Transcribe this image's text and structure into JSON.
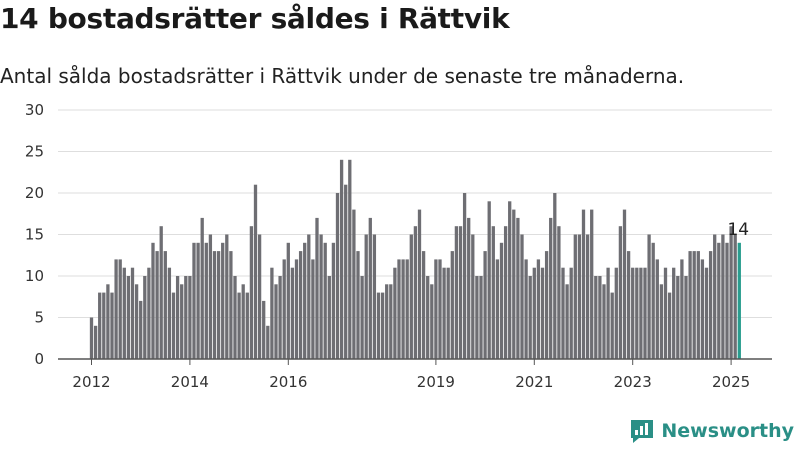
{
  "title": "14 bostadsrätter såldes i Rättvik",
  "subtitle": "Antal sålda bostadsrätter i Rättvik under de senaste tre månaderna.",
  "brand": {
    "name": "Newsworthy",
    "icon": "newsworthy-logo-icon",
    "color": "#2a8f86"
  },
  "chart_data": {
    "type": "bar",
    "x_start": "2012-01",
    "x_step": "month",
    "x_ticks": [
      "2012",
      "2014",
      "2016",
      "2019",
      "2021",
      "2023",
      "2025"
    ],
    "x_tick_years": [
      2012,
      2014,
      2016,
      2019,
      2021,
      2023,
      2025
    ],
    "y_ticks": [
      0,
      5,
      10,
      15,
      20,
      25,
      30
    ],
    "ylim": [
      0,
      30
    ],
    "grid": true,
    "bar_color": "#6e6e73",
    "highlight_color": "#2a9d8f",
    "highlight_last": true,
    "annotation": "14",
    "values": [
      5,
      4,
      8,
      8,
      9,
      8,
      12,
      12,
      11,
      10,
      11,
      9,
      7,
      10,
      11,
      14,
      13,
      16,
      13,
      11,
      8,
      10,
      9,
      10,
      10,
      14,
      14,
      17,
      14,
      15,
      13,
      13,
      14,
      15,
      13,
      10,
      8,
      9,
      8,
      16,
      21,
      15,
      7,
      4,
      11,
      9,
      10,
      12,
      14,
      11,
      12,
      13,
      14,
      15,
      12,
      17,
      15,
      14,
      10,
      14,
      20,
      24,
      21,
      24,
      18,
      13,
      10,
      15,
      17,
      15,
      8,
      8,
      9,
      9,
      11,
      12,
      12,
      12,
      15,
      16,
      18,
      13,
      10,
      9,
      12,
      12,
      11,
      11,
      13,
      16,
      16,
      20,
      17,
      15,
      10,
      10,
      13,
      19,
      16,
      12,
      14,
      16,
      19,
      18,
      17,
      15,
      12,
      10,
      11,
      12,
      11,
      13,
      17,
      20,
      16,
      11,
      9,
      11,
      15,
      15,
      18,
      15,
      18,
      10,
      10,
      9,
      11,
      8,
      11,
      16,
      18,
      13,
      11,
      11,
      11,
      11,
      15,
      14,
      12,
      9,
      11,
      8,
      11,
      10,
      12,
      10,
      13,
      13,
      13,
      12,
      11,
      13,
      15,
      14,
      15,
      14,
      16,
      15,
      14
    ]
  }
}
